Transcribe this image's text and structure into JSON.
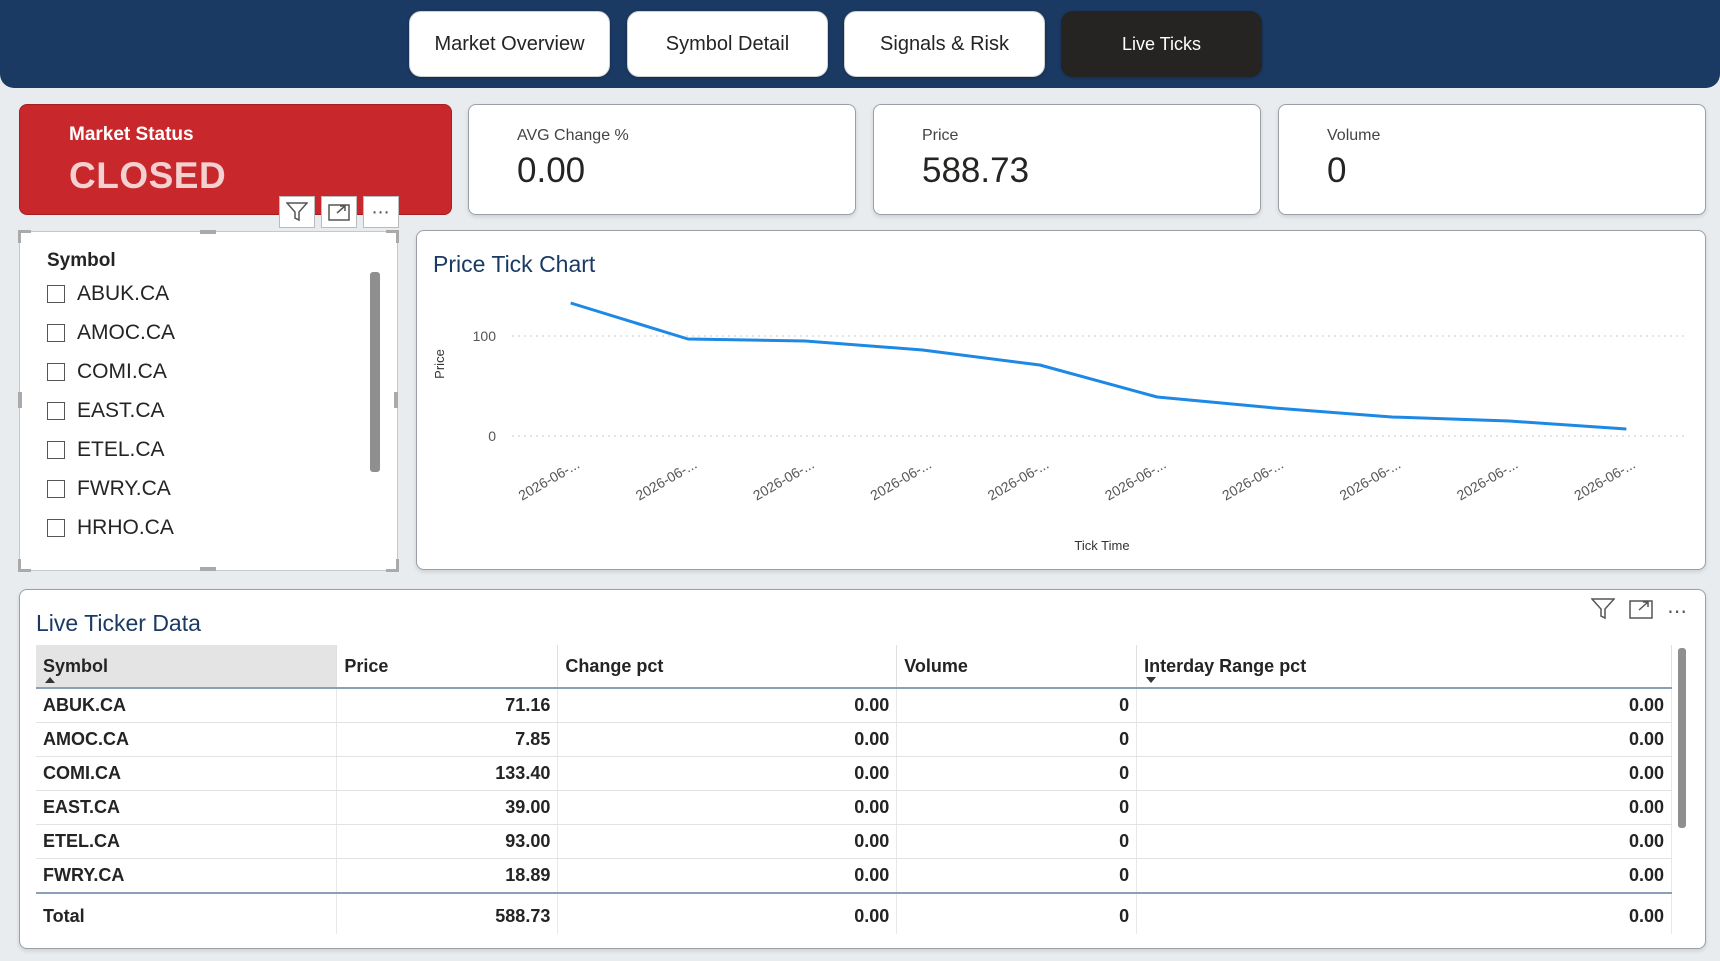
{
  "nav": {
    "tabs": [
      {
        "label": "Market Overview"
      },
      {
        "label": "Symbol Detail"
      },
      {
        "label": "Signals & Risk"
      },
      {
        "label": "Live Ticks"
      }
    ],
    "active": "Live Ticks"
  },
  "status": {
    "label": "Market Status",
    "value": "CLOSED",
    "color": "#c8282c"
  },
  "kpis": [
    {
      "label": "AVG Change %",
      "value": "0.00"
    },
    {
      "label": "Price",
      "value": "588.73"
    },
    {
      "label": "Volume",
      "value": "0"
    }
  ],
  "slicer": {
    "title": "Symbol",
    "items": [
      "ABUK.CA",
      "AMOC.CA",
      "COMI.CA",
      "EAST.CA",
      "ETEL.CA",
      "FWRY.CA",
      "HRHO.CA"
    ]
  },
  "chart_data": {
    "type": "line",
    "title": "Price Tick Chart",
    "xlabel": "Tick Time",
    "ylabel": "Price",
    "x": [
      "2026-06-...",
      "2026-06-...",
      "2026-06-...",
      "2026-06-...",
      "2026-06-...",
      "2026-06-...",
      "2026-06-...",
      "2026-06-...",
      "2026-06-...",
      "2026-06-..."
    ],
    "values": [
      133,
      97,
      95,
      86,
      71,
      39,
      28,
      19,
      15,
      7
    ],
    "yticks": [
      0,
      100
    ],
    "ylim": [
      -10,
      145
    ],
    "grid": true,
    "color": "#1e88e5"
  },
  "table": {
    "title": "Live Ticker Data",
    "columns": [
      "Symbol",
      "Price",
      "Change pct",
      "Volume",
      "Interday Range pct"
    ],
    "rows": [
      [
        "ABUK.CA",
        "71.16",
        "0.00",
        "0",
        "0.00"
      ],
      [
        "AMOC.CA",
        "7.85",
        "0.00",
        "0",
        "0.00"
      ],
      [
        "COMI.CA",
        "133.40",
        "0.00",
        "0",
        "0.00"
      ],
      [
        "EAST.CA",
        "39.00",
        "0.00",
        "0",
        "0.00"
      ],
      [
        "ETEL.CA",
        "93.00",
        "0.00",
        "0",
        "0.00"
      ],
      [
        "FWRY.CA",
        "18.89",
        "0.00",
        "0",
        "0.00"
      ]
    ],
    "total": [
      "Total",
      "588.73",
      "0.00",
      "0",
      "0.00"
    ]
  },
  "icons": [
    "filter-icon",
    "focus-mode-icon",
    "more-options-icon"
  ]
}
